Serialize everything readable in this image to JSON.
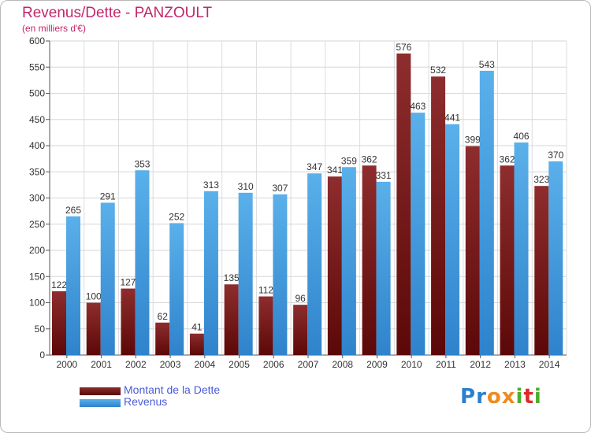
{
  "chart_data": {
    "type": "bar",
    "title": "Revenus/Dette - PANZOULT",
    "subtitle": "(en milliers d'€)",
    "categories": [
      "2000",
      "2001",
      "2002",
      "2003",
      "2004",
      "2005",
      "2006",
      "2007",
      "2008",
      "2009",
      "2010",
      "2011",
      "2012",
      "2013",
      "2014"
    ],
    "series": [
      {
        "name": "Montant de la Dette",
        "color": "#7a1c1c",
        "values": [
          122,
          100,
          127,
          62,
          41,
          135,
          112,
          96,
          341,
          362,
          576,
          532,
          399,
          362,
          323
        ]
      },
      {
        "name": "Revenus",
        "color": "#4aa3e0",
        "values": [
          265,
          291,
          353,
          252,
          313,
          310,
          307,
          347,
          359,
          331,
          463,
          441,
          543,
          406,
          370
        ]
      }
    ],
    "ylim": [
      0,
      600
    ],
    "yticks": [
      0,
      50,
      100,
      150,
      200,
      250,
      300,
      350,
      400,
      450,
      500,
      550,
      600
    ],
    "grid": true,
    "legend": "bottom-left"
  },
  "logo": {
    "letters": [
      "P",
      "r",
      "o",
      "x",
      "i",
      "t",
      "i"
    ],
    "colors": [
      "#2a7fd0",
      "#2a7fd0",
      "#f08a1c",
      "#f08a1c",
      "#4cae2e",
      "#e02a2a",
      "#4cae2e"
    ]
  }
}
